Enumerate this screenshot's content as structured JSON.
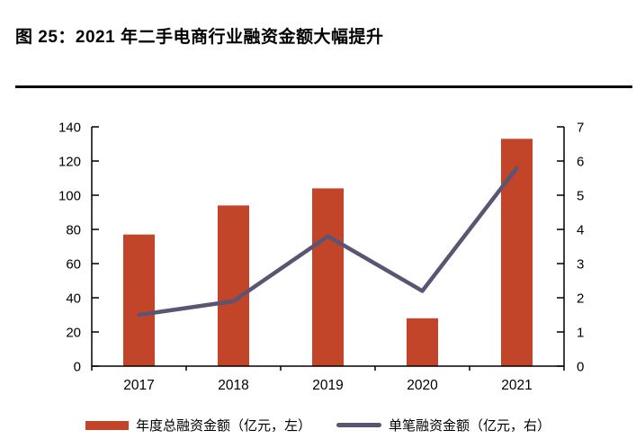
{
  "header": {
    "title": "图 25：2021 年二手电商行业融资金额大幅提升"
  },
  "chart_data": {
    "type": "bar",
    "subtype": "bar-line-combo",
    "title": "2021 年二手电商行业融资金额大幅提升",
    "categories": [
      "2017",
      "2018",
      "2019",
      "2020",
      "2021"
    ],
    "series": [
      {
        "name": "年度总融资金额（亿元，左）",
        "type": "bar",
        "axis": "left",
        "color": "#C2452A",
        "values": [
          77,
          94,
          104,
          28,
          133
        ]
      },
      {
        "name": "单笔融资金额（亿元，右）",
        "type": "line",
        "axis": "right",
        "color": "#5B5573",
        "values": [
          1.5,
          1.9,
          3.8,
          2.2,
          5.8
        ]
      }
    ],
    "left_axis": {
      "min": 0,
      "max": 140,
      "step": 20,
      "ticks": [
        "0",
        "20",
        "40",
        "60",
        "80",
        "100",
        "120",
        "140"
      ]
    },
    "right_axis": {
      "min": 0,
      "max": 7,
      "step": 1,
      "ticks": [
        "0",
        "1",
        "2",
        "3",
        "4",
        "5",
        "6",
        "7"
      ]
    },
    "grid": false,
    "legend_position": "bottom"
  },
  "colors": {
    "bar": "#C2452A",
    "line": "#5B5573",
    "axis": "#000000",
    "title_rule": "#000000",
    "background": "#FFFFFF"
  }
}
